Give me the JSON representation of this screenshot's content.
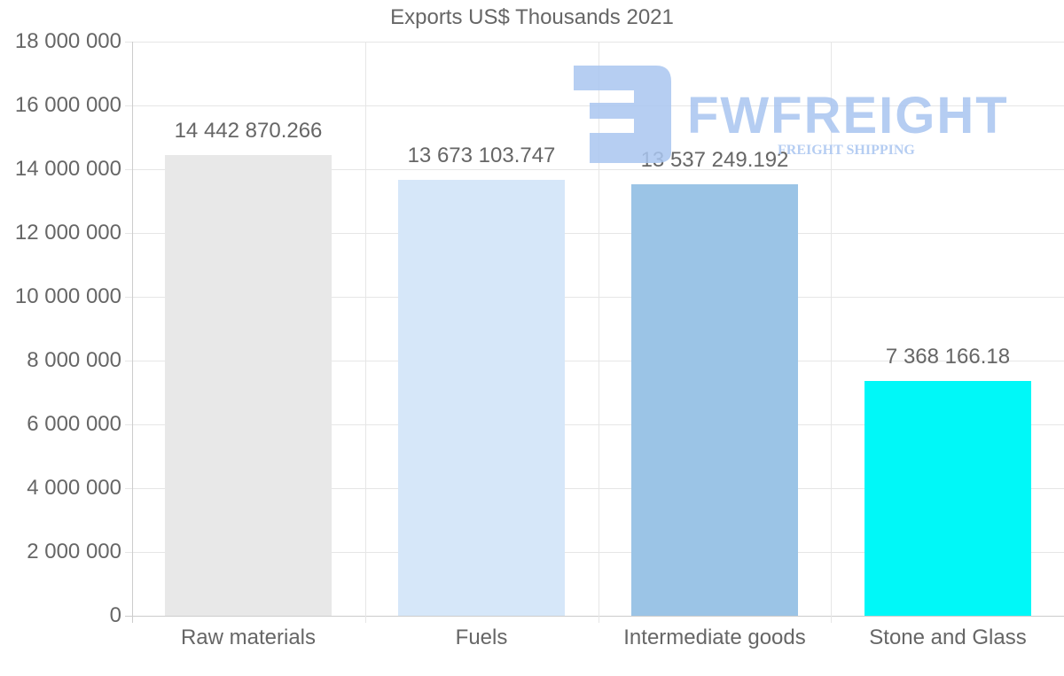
{
  "chart_data": {
    "type": "bar",
    "title": "Exports US$ Thousands 2021",
    "xlabel": "",
    "ylabel": "",
    "categories": [
      "Raw materials",
      "Fuels",
      "Intermediate goods",
      "Stone and Glass"
    ],
    "values": [
      14442870.266,
      13673103.747,
      13537249.192,
      7368166.18
    ],
    "value_labels": [
      "14 442 870.266",
      "13 673 103.747",
      "13 537 249.192",
      "7 368 166.18"
    ],
    "colors": [
      "#e8e8e8",
      "#d6e7f9",
      "#9bc4e6",
      "#00f8f8"
    ],
    "ylim": [
      0,
      18000000
    ],
    "yticks": [
      0,
      2000000,
      4000000,
      6000000,
      8000000,
      10000000,
      12000000,
      14000000,
      16000000,
      18000000
    ],
    "ytick_labels": [
      "0",
      "2 000 000",
      "4 000 000",
      "6 000 000",
      "8 000 000",
      "10 000 000",
      "12 000 000",
      "14 000 000",
      "16 000 000",
      "18 000 000"
    ],
    "grid": true,
    "legend": "none"
  },
  "watermark": {
    "brand": "FWFREIGHT",
    "tagline": "FREIGHT SHIPPING",
    "color": "#a9c5f0"
  }
}
